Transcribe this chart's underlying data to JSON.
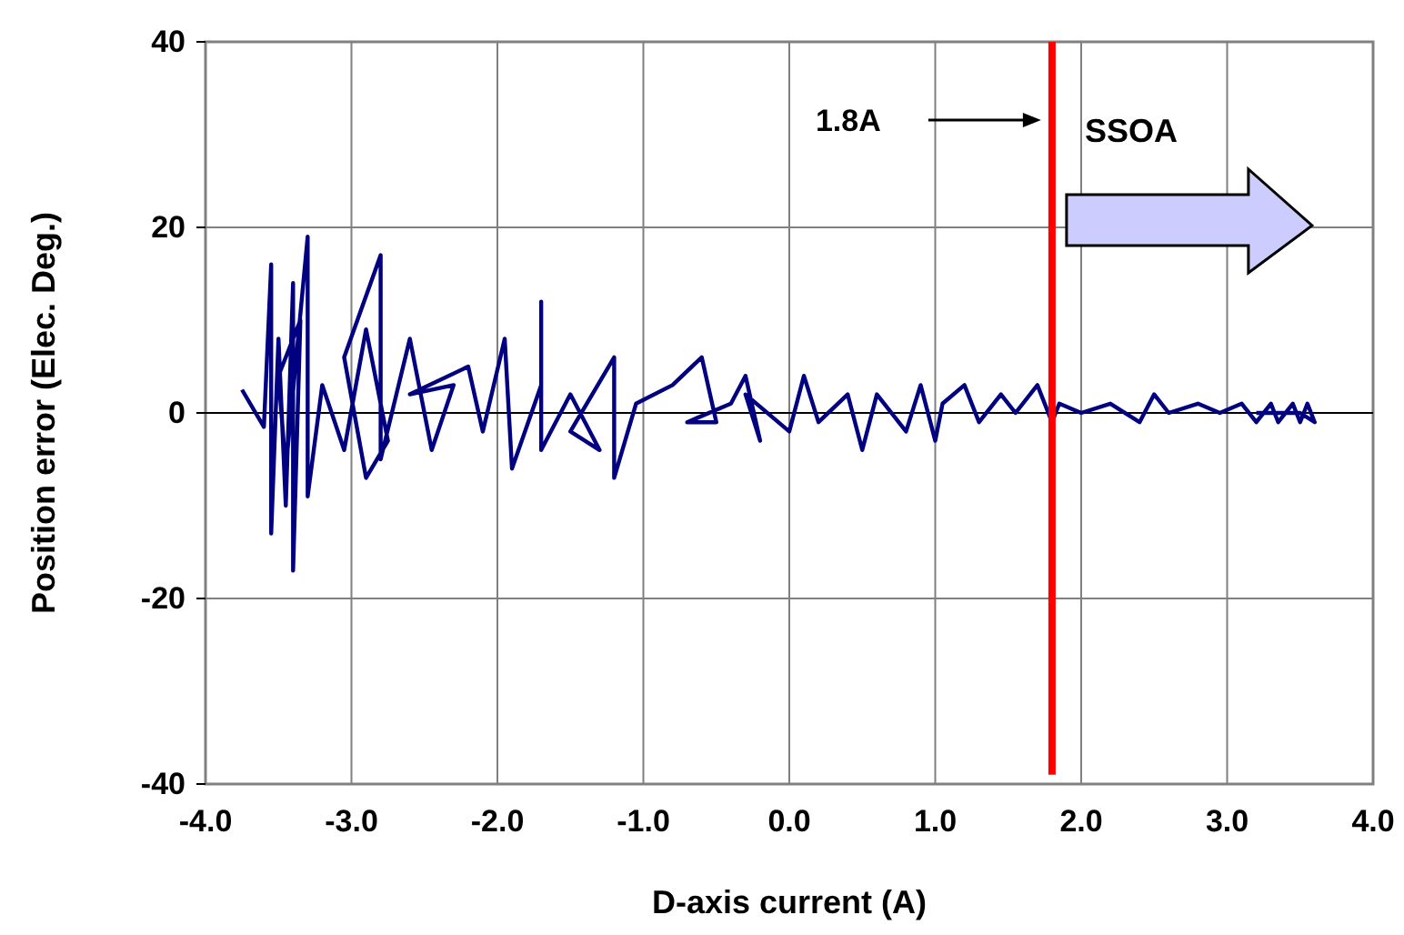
{
  "chart_data": {
    "type": "line",
    "xlabel": "D-axis current (A)",
    "ylabel": "Position error (Elec. Deg.)",
    "xlim": [
      -4,
      4
    ],
    "ylim": [
      -40,
      40
    ],
    "xticks": [
      {
        "value": -4,
        "label": "-4.0"
      },
      {
        "value": -3,
        "label": "-3.0"
      },
      {
        "value": -2,
        "label": "-2.0"
      },
      {
        "value": -1,
        "label": "-1.0"
      },
      {
        "value": 0,
        "label": "0.0"
      },
      {
        "value": 1,
        "label": "1.0"
      },
      {
        "value": 2,
        "label": "2.0"
      },
      {
        "value": 3,
        "label": "3.0"
      },
      {
        "value": 4,
        "label": "4.0"
      }
    ],
    "yticks": [
      -40,
      -20,
      0,
      20,
      40
    ],
    "grid": true,
    "series": [
      {
        "color": "#000080",
        "x": [
          -3.75,
          -3.6,
          -3.55,
          -3.55,
          -3.5,
          -3.45,
          -3.4,
          -3.4,
          -3.35,
          -3.5,
          -3.45,
          -3.3,
          -3.3,
          -3.2,
          -3.05,
          -2.9,
          -2.75,
          -2.9,
          -3.05,
          -2.8,
          -2.8,
          -2.6,
          -2.45,
          -2.3,
          -2.6,
          -2.2,
          -2.1,
          -1.95,
          -1.9,
          -1.7,
          -1.7,
          -1.7,
          -1.5,
          -1.3,
          -1.5,
          -1.2,
          -1.2,
          -1.05,
          -0.8,
          -0.6,
          -0.5,
          -0.7,
          -0.4,
          -0.3,
          -0.2,
          -0.3,
          0,
          0.1,
          0.2,
          0.4,
          0.5,
          0.6,
          0.8,
          0.9,
          1.0,
          1.05,
          1.2,
          1.3,
          1.45,
          1.55,
          1.7,
          1.8,
          1.85,
          2.0,
          2.2,
          2.4,
          2.5,
          2.6,
          2.8,
          2.95,
          3.1,
          3.2,
          3.3,
          3.35,
          3.45,
          3.5,
          3.55,
          3.6,
          3.5,
          3.2
        ],
        "values": [
          2.5,
          -1.5,
          16,
          -13,
          8,
          -10,
          14,
          -17,
          10,
          4,
          -6,
          19,
          -9,
          3,
          -4,
          9,
          -3,
          -7,
          6,
          17,
          -5,
          8,
          -4,
          3,
          2,
          5,
          -2,
          8,
          -6,
          3,
          12,
          -4,
          2,
          -4,
          -2,
          6,
          -7,
          1,
          3,
          6,
          -1,
          -1,
          1,
          4,
          -3,
          2,
          -2,
          4,
          -1,
          2,
          -4,
          2,
          -2,
          3,
          -3,
          1,
          3,
          -1,
          2,
          0,
          3,
          -1,
          1,
          0,
          1,
          -1,
          2,
          0,
          1,
          0,
          1,
          -1,
          1,
          -1,
          1,
          -1,
          1,
          -1,
          0,
          0
        ]
      }
    ],
    "ref_lines": [
      {
        "axis": "x",
        "value": 1.8,
        "color": "#ff0000"
      }
    ],
    "annotations": [
      "1.8A",
      "SSOA"
    ]
  }
}
